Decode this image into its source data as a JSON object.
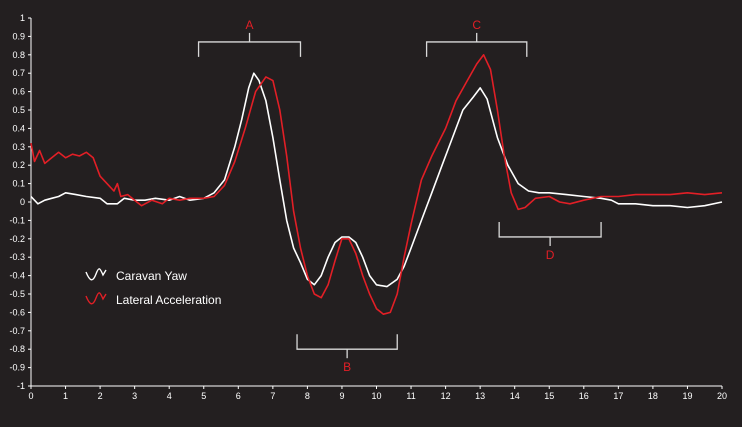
{
  "colors": {
    "background": "#231f20",
    "axis": "#ffffff",
    "text": "#ffffff",
    "series_yaw": "#ffffff",
    "series_lat": "#e21f26",
    "annotation_text": "#e21f26",
    "bracket": "#d9d9d9"
  },
  "chart_data": {
    "type": "line",
    "title": "",
    "xlabel": "",
    "ylabel": "",
    "xlim": [
      0,
      20
    ],
    "ylim": [
      -1,
      1
    ],
    "grid": false,
    "legend_position": "lower-left",
    "x_ticks": [
      0,
      1,
      2,
      3,
      4,
      5,
      6,
      7,
      8,
      9,
      10,
      11,
      12,
      13,
      14,
      15,
      16,
      17,
      18,
      19,
      20
    ],
    "y_ticks": [
      1,
      0.9,
      0.8,
      0.7,
      0.6,
      0.5,
      0.4,
      0.3,
      0.2,
      0.1,
      0,
      -0.1,
      -0.2,
      -0.3,
      -0.4,
      -0.5,
      -0.6,
      -0.7,
      -0.8,
      -0.9,
      -1
    ],
    "y_tick_labels": [
      "1",
      "0.9",
      "0.8",
      "0.7",
      "0.6",
      "0.5",
      "0.4",
      "0.3",
      "0.2",
      "0.1",
      "0",
      "-0.1",
      "-0.2",
      "-0.3",
      "-0.4",
      "-0.5",
      "-0.6",
      "-0.7",
      "-0.8",
      "-0.9",
      "-1"
    ],
    "series": [
      {
        "name": "Caravan Yaw",
        "color": "#ffffff",
        "points": [
          [
            0,
            0.03
          ],
          [
            0.2,
            -0.01
          ],
          [
            0.4,
            0.01
          ],
          [
            0.6,
            0.02
          ],
          [
            0.8,
            0.03
          ],
          [
            1,
            0.05
          ],
          [
            1.3,
            0.04
          ],
          [
            1.6,
            0.03
          ],
          [
            2,
            0.02
          ],
          [
            2.2,
            -0.01
          ],
          [
            2.5,
            -0.01
          ],
          [
            2.7,
            0.02
          ],
          [
            3,
            0.01
          ],
          [
            3.3,
            0.01
          ],
          [
            3.6,
            0.02
          ],
          [
            4,
            0.01
          ],
          [
            4.3,
            0.03
          ],
          [
            4.6,
            0.01
          ],
          [
            5,
            0.02
          ],
          [
            5.3,
            0.05
          ],
          [
            5.6,
            0.12
          ],
          [
            5.9,
            0.3
          ],
          [
            6.1,
            0.45
          ],
          [
            6.3,
            0.62
          ],
          [
            6.45,
            0.7
          ],
          [
            6.6,
            0.66
          ],
          [
            6.8,
            0.55
          ],
          [
            7,
            0.35
          ],
          [
            7.2,
            0.12
          ],
          [
            7.4,
            -0.1
          ],
          [
            7.6,
            -0.25
          ],
          [
            7.8,
            -0.33
          ],
          [
            8,
            -0.42
          ],
          [
            8.2,
            -0.45
          ],
          [
            8.4,
            -0.4
          ],
          [
            8.6,
            -0.3
          ],
          [
            8.8,
            -0.22
          ],
          [
            9,
            -0.19
          ],
          [
            9.2,
            -0.19
          ],
          [
            9.4,
            -0.22
          ],
          [
            9.6,
            -0.3
          ],
          [
            9.8,
            -0.4
          ],
          [
            10,
            -0.45
          ],
          [
            10.3,
            -0.46
          ],
          [
            10.6,
            -0.42
          ],
          [
            10.8,
            -0.35
          ],
          [
            11,
            -0.25
          ],
          [
            11.3,
            -0.1
          ],
          [
            11.6,
            0.05
          ],
          [
            11.9,
            0.2
          ],
          [
            12.2,
            0.35
          ],
          [
            12.5,
            0.5
          ],
          [
            12.8,
            0.57
          ],
          [
            13,
            0.62
          ],
          [
            13.2,
            0.56
          ],
          [
            13.5,
            0.35
          ],
          [
            13.8,
            0.2
          ],
          [
            14.1,
            0.1
          ],
          [
            14.4,
            0.06
          ],
          [
            14.7,
            0.05
          ],
          [
            15,
            0.05
          ],
          [
            15.5,
            0.04
          ],
          [
            16,
            0.03
          ],
          [
            16.5,
            0.02
          ],
          [
            16.8,
            0.01
          ],
          [
            17,
            -0.01
          ],
          [
            17.5,
            -0.01
          ],
          [
            18,
            -0.02
          ],
          [
            18.5,
            -0.02
          ],
          [
            19,
            -0.03
          ],
          [
            19.5,
            -0.02
          ],
          [
            20,
            0
          ]
        ]
      },
      {
        "name": "Lateral Acceleration",
        "color": "#e21f26",
        "points": [
          [
            0,
            0.32
          ],
          [
            0.1,
            0.22
          ],
          [
            0.25,
            0.28
          ],
          [
            0.4,
            0.21
          ],
          [
            0.6,
            0.24
          ],
          [
            0.8,
            0.27
          ],
          [
            1,
            0.24
          ],
          [
            1.2,
            0.26
          ],
          [
            1.4,
            0.25
          ],
          [
            1.6,
            0.27
          ],
          [
            1.8,
            0.24
          ],
          [
            2,
            0.14
          ],
          [
            2.2,
            0.1
          ],
          [
            2.4,
            0.06
          ],
          [
            2.5,
            0.1
          ],
          [
            2.6,
            0.03
          ],
          [
            2.8,
            0.04
          ],
          [
            3,
            0.01
          ],
          [
            3.2,
            -0.02
          ],
          [
            3.5,
            0.01
          ],
          [
            3.8,
            -0.01
          ],
          [
            4,
            0.02
          ],
          [
            4.3,
            0.01
          ],
          [
            4.6,
            0.02
          ],
          [
            5,
            0.02
          ],
          [
            5.3,
            0.03
          ],
          [
            5.6,
            0.09
          ],
          [
            5.9,
            0.22
          ],
          [
            6.2,
            0.4
          ],
          [
            6.5,
            0.6
          ],
          [
            6.8,
            0.68
          ],
          [
            7,
            0.66
          ],
          [
            7.2,
            0.5
          ],
          [
            7.4,
            0.25
          ],
          [
            7.6,
            -0.05
          ],
          [
            7.8,
            -0.25
          ],
          [
            8,
            -0.4
          ],
          [
            8.2,
            -0.5
          ],
          [
            8.4,
            -0.52
          ],
          [
            8.6,
            -0.45
          ],
          [
            8.8,
            -0.32
          ],
          [
            9,
            -0.2
          ],
          [
            9.2,
            -0.2
          ],
          [
            9.4,
            -0.28
          ],
          [
            9.6,
            -0.4
          ],
          [
            9.8,
            -0.5
          ],
          [
            10,
            -0.58
          ],
          [
            10.2,
            -0.61
          ],
          [
            10.4,
            -0.6
          ],
          [
            10.6,
            -0.5
          ],
          [
            10.8,
            -0.3
          ],
          [
            11,
            -0.12
          ],
          [
            11.3,
            0.12
          ],
          [
            11.6,
            0.25
          ],
          [
            12,
            0.4
          ],
          [
            12.3,
            0.55
          ],
          [
            12.6,
            0.65
          ],
          [
            12.9,
            0.75
          ],
          [
            13.1,
            0.8
          ],
          [
            13.3,
            0.72
          ],
          [
            13.5,
            0.5
          ],
          [
            13.7,
            0.25
          ],
          [
            13.9,
            0.05
          ],
          [
            14.1,
            -0.04
          ],
          [
            14.3,
            -0.03
          ],
          [
            14.6,
            0.02
          ],
          [
            15,
            0.03
          ],
          [
            15.3,
            0.0
          ],
          [
            15.6,
            -0.01
          ],
          [
            16,
            0.01
          ],
          [
            16.5,
            0.03
          ],
          [
            17,
            0.03
          ],
          [
            17.5,
            0.04
          ],
          [
            18,
            0.04
          ],
          [
            18.5,
            0.04
          ],
          [
            19,
            0.05
          ],
          [
            19.5,
            0.04
          ],
          [
            20,
            0.05
          ]
        ]
      }
    ],
    "legend": [
      {
        "label": "Caravan Yaw",
        "color": "#ffffff"
      },
      {
        "label": "Lateral Acceleration",
        "color": "#e21f26"
      }
    ],
    "annotations": [
      {
        "label": "A",
        "x_start": 4.85,
        "x_end": 7.8,
        "y": 0.87,
        "label_side": "above"
      },
      {
        "label": "B",
        "x_start": 7.7,
        "x_end": 10.6,
        "y": -0.8,
        "label_side": "below"
      },
      {
        "label": "C",
        "x_start": 11.45,
        "x_end": 14.35,
        "y": 0.87,
        "label_side": "above"
      },
      {
        "label": "D",
        "x_start": 13.55,
        "x_end": 16.5,
        "y": -0.19,
        "label_side": "below"
      }
    ]
  }
}
